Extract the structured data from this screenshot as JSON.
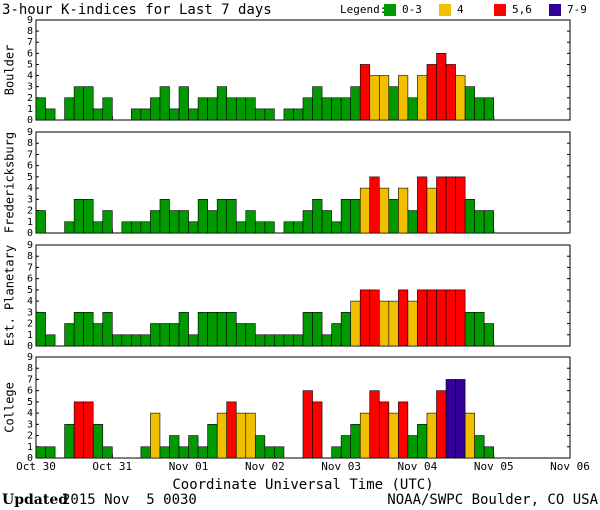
{
  "chart_data": [
    {
      "type": "bar",
      "title": "3-hour K-indices for Last 7 days",
      "legend_title": "Legend:",
      "legend": [
        {
          "name": "0-3",
          "color": "#009900",
          "max": 3
        },
        {
          "name": "4",
          "color": "#f0c000",
          "max": 4
        },
        {
          "name": "5,6",
          "color": "#ff0000",
          "max": 6
        },
        {
          "name": "7-9",
          "color": "#330099",
          "max": 9
        }
      ],
      "ylabel": "Boulder",
      "ylim": [
        0,
        9
      ],
      "yticks": [
        0,
        1,
        2,
        3,
        4,
        5,
        6,
        7,
        8,
        9
      ],
      "xlim": [
        0,
        56
      ],
      "values": [
        2,
        1,
        0,
        2,
        3,
        3,
        1,
        2,
        0,
        0,
        1,
        1,
        2,
        3,
        1,
        3,
        1,
        2,
        2,
        3,
        2,
        2,
        2,
        1,
        1,
        0,
        1,
        1,
        2,
        3,
        2,
        2,
        2,
        3,
        5,
        4,
        4,
        3,
        4,
        2,
        4,
        5,
        6,
        5,
        4,
        3,
        2,
        2,
        null,
        null,
        null,
        null,
        null,
        null,
        null,
        null
      ]
    },
    {
      "type": "bar",
      "ylabel": "Fredericksburg",
      "ylim": [
        0,
        9
      ],
      "yticks": [
        0,
        1,
        2,
        3,
        4,
        5,
        6,
        7,
        8,
        9
      ],
      "xlim": [
        0,
        56
      ],
      "values": [
        2,
        0,
        0,
        1,
        3,
        3,
        1,
        2,
        0,
        1,
        1,
        1,
        2,
        3,
        2,
        2,
        1,
        3,
        2,
        3,
        3,
        1,
        2,
        1,
        1,
        0,
        1,
        1,
        2,
        3,
        2,
        1,
        3,
        3,
        4,
        5,
        4,
        3,
        4,
        2,
        5,
        4,
        5,
        5,
        5,
        3,
        2,
        2,
        null,
        null,
        null,
        null,
        null,
        null,
        null,
        null
      ]
    },
    {
      "type": "bar",
      "ylabel": "Est. Planetary",
      "ylim": [
        0,
        9
      ],
      "yticks": [
        0,
        1,
        2,
        3,
        4,
        5,
        6,
        7,
        8,
        9
      ],
      "xlim": [
        0,
        56
      ],
      "values": [
        3,
        1,
        0,
        2,
        3,
        3,
        2,
        3,
        1,
        1,
        1,
        1,
        2,
        2,
        2,
        3,
        1,
        3,
        3,
        3,
        3,
        2,
        2,
        1,
        1,
        1,
        1,
        1,
        3,
        3,
        1,
        2,
        3,
        4,
        5,
        5,
        4,
        4,
        5,
        4,
        5,
        5,
        5,
        5,
        5,
        3,
        3,
        2,
        null,
        null,
        null,
        null,
        null,
        null,
        null,
        null
      ]
    },
    {
      "type": "bar",
      "ylabel": "College",
      "ylim": [
        0,
        9
      ],
      "yticks": [
        0,
        1,
        2,
        3,
        4,
        5,
        6,
        7,
        8,
        9
      ],
      "xlim": [
        0,
        56
      ],
      "xlabel": "Coordinate Universal Time (UTC)",
      "xticks": [
        {
          "value": 0,
          "label": "Oct 30"
        },
        {
          "value": 8,
          "label": "Oct 31"
        },
        {
          "value": 16,
          "label": "Nov 01"
        },
        {
          "value": 24,
          "label": "Nov 02"
        },
        {
          "value": 32,
          "label": "Nov 03"
        },
        {
          "value": 40,
          "label": "Nov 04"
        },
        {
          "value": 48,
          "label": "Nov 05"
        },
        {
          "value": 56,
          "label": "Nov 06"
        }
      ],
      "values": [
        1,
        1,
        0,
        3,
        5,
        5,
        3,
        1,
        0,
        0,
        0,
        1,
        4,
        1,
        2,
        1,
        2,
        1,
        3,
        4,
        5,
        4,
        4,
        2,
        1,
        1,
        0,
        0,
        6,
        5,
        0,
        1,
        2,
        3,
        4,
        6,
        5,
        4,
        5,
        2,
        3,
        4,
        6,
        7,
        7,
        4,
        2,
        1,
        null,
        null,
        null,
        null,
        null,
        null,
        null,
        null
      ]
    }
  ],
  "footer": {
    "updated_label": "Updated",
    "updated": "2015 Nov  5 0030",
    "source": "NOAA/SWPC Boulder, CO USA"
  }
}
